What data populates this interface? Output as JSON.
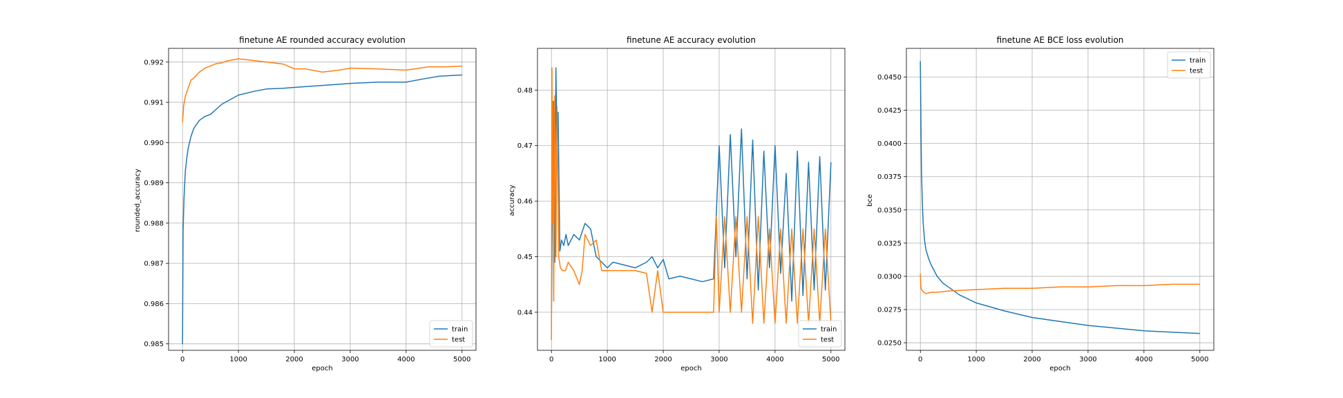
{
  "chart_data": [
    {
      "type": "line",
      "title": "finetune AE rounded accuracy evolution",
      "xlabel": "epoch",
      "ylabel": "rounded_accuracy",
      "xlim": [
        -250,
        5250
      ],
      "ylim": [
        0.98484,
        0.99234
      ],
      "xticks": [
        0,
        1000,
        2000,
        3000,
        4000,
        5000
      ],
      "yticks": [
        0.985,
        0.986,
        0.987,
        0.988,
        0.989,
        0.99,
        0.991,
        0.992
      ],
      "ytick_labels": [
        "0.985",
        "0.986",
        "0.987",
        "0.988",
        "0.989",
        "0.990",
        "0.991",
        "0.992"
      ],
      "grid": true,
      "legend": "lower right",
      "series": [
        {
          "name": "train",
          "color": "#1f77b4",
          "x": [
            0,
            10,
            25,
            50,
            75,
            100,
            150,
            200,
            300,
            400,
            500,
            700,
            1000,
            1300,
            1500,
            1800,
            2000,
            2500,
            3000,
            3500,
            4000,
            4300,
            4600,
            5000
          ],
          "y": [
            0.985,
            0.9878,
            0.9886,
            0.9893,
            0.9896,
            0.98985,
            0.99015,
            0.99035,
            0.99055,
            0.99065,
            0.9907,
            0.99095,
            0.99118,
            0.99128,
            0.99133,
            0.99135,
            0.99137,
            0.99142,
            0.99147,
            0.9915,
            0.9915,
            0.99158,
            0.99165,
            0.99168
          ]
        },
        {
          "name": "test",
          "color": "#ff7f0e",
          "x": [
            0,
            20,
            50,
            100,
            150,
            200,
            300,
            400,
            500,
            600,
            700,
            800,
            1000,
            1200,
            1500,
            1800,
            2000,
            2200,
            2500,
            2800,
            3000,
            3500,
            4000,
            4400,
            4700,
            5000
          ],
          "y": [
            0.9905,
            0.9909,
            0.99115,
            0.99135,
            0.99155,
            0.9916,
            0.99175,
            0.99185,
            0.9919,
            0.99196,
            0.99198,
            0.99203,
            0.99208,
            0.99205,
            0.992,
            0.99195,
            0.99183,
            0.99183,
            0.99175,
            0.9918,
            0.99185,
            0.99183,
            0.9918,
            0.99188,
            0.99188,
            0.9919
          ]
        }
      ]
    },
    {
      "type": "line",
      "title": "finetune AE accuracy evolution",
      "xlabel": "epoch",
      "ylabel": "accuracy",
      "xlim": [
        -250,
        5250
      ],
      "ylim": [
        0.43314,
        0.48751
      ],
      "xticks": [
        0,
        1000,
        2000,
        3000,
        4000,
        5000
      ],
      "yticks": [
        0.44,
        0.45,
        0.46,
        0.47,
        0.48
      ],
      "ytick_labels": [
        "0.44",
        "0.45",
        "0.46",
        "0.47",
        "0.48"
      ],
      "grid": true,
      "legend": "lower right",
      "series": [
        {
          "name": "train",
          "color": "#1f77b4",
          "x": [
            0,
            20,
            40,
            60,
            80,
            100,
            120,
            150,
            180,
            220,
            260,
            300,
            400,
            500,
            600,
            700,
            800,
            900,
            1000,
            1100,
            1300,
            1500,
            1700,
            1800,
            1900,
            2000,
            2100,
            2300,
            2500,
            2700,
            2900,
            3000,
            3100,
            3200,
            3300,
            3400,
            3500,
            3600,
            3700,
            3800,
            3900,
            4000,
            4100,
            4200,
            4300,
            4400,
            4500,
            4600,
            4700,
            4800,
            4900,
            5000
          ],
          "y": [
            0.438,
            0.465,
            0.478,
            0.449,
            0.484,
            0.469,
            0.476,
            0.451,
            0.453,
            0.452,
            0.454,
            0.452,
            0.454,
            0.453,
            0.456,
            0.455,
            0.45,
            0.449,
            0.448,
            0.449,
            0.4485,
            0.448,
            0.449,
            0.45,
            0.448,
            0.4495,
            0.446,
            0.4465,
            0.446,
            0.4455,
            0.446,
            0.47,
            0.448,
            0.472,
            0.45,
            0.473,
            0.446,
            0.471,
            0.444,
            0.469,
            0.448,
            0.47,
            0.447,
            0.465,
            0.442,
            0.469,
            0.443,
            0.467,
            0.444,
            0.468,
            0.444,
            0.467
          ]
        },
        {
          "name": "test",
          "color": "#ff7f0e",
          "x": [
            0,
            10,
            20,
            30,
            40,
            60,
            80,
            100,
            130,
            160,
            200,
            250,
            300,
            400,
            500,
            550,
            600,
            700,
            800,
            900,
            1000,
            1200,
            1500,
            1700,
            1800,
            1900,
            2000,
            2300,
            2600,
            2900,
            2950,
            3000,
            3100,
            3200,
            3300,
            3400,
            3500,
            3600,
            3700,
            3800,
            3900,
            4000,
            4100,
            4200,
            4300,
            4400,
            4500,
            4600,
            4700,
            4800,
            4900,
            5000
          ],
          "y": [
            0.435,
            0.484,
            0.456,
            0.478,
            0.442,
            0.479,
            0.45,
            0.477,
            0.45,
            0.448,
            0.4475,
            0.4475,
            0.449,
            0.4475,
            0.445,
            0.4475,
            0.454,
            0.452,
            0.453,
            0.4475,
            0.4475,
            0.4475,
            0.4475,
            0.447,
            0.44,
            0.4475,
            0.44,
            0.44,
            0.44,
            0.44,
            0.4572,
            0.44,
            0.4572,
            0.44,
            0.4572,
            0.44,
            0.4572,
            0.438,
            0.4572,
            0.438,
            0.455,
            0.438,
            0.455,
            0.438,
            0.455,
            0.438,
            0.455,
            0.438,
            0.455,
            0.438,
            0.455,
            0.438
          ]
        }
      ]
    },
    {
      "type": "line",
      "title": "finetune AE BCE loss evolution",
      "xlabel": "epoch",
      "ylabel": "bce",
      "xlim": [
        -250,
        5250
      ],
      "ylim": [
        0.02443,
        0.04716
      ],
      "xticks": [
        0,
        1000,
        2000,
        3000,
        4000,
        5000
      ],
      "yticks": [
        0.025,
        0.0275,
        0.03,
        0.0325,
        0.035,
        0.0375,
        0.04,
        0.0425,
        0.045
      ],
      "ytick_labels": [
        "0.0250",
        "0.0275",
        "0.0300",
        "0.0325",
        "0.0350",
        "0.0375",
        "0.0400",
        "0.0425",
        "0.0450"
      ],
      "grid": true,
      "legend": "upper right",
      "series": [
        {
          "name": "train",
          "color": "#1f77b4",
          "x": [
            0,
            10,
            20,
            35,
            50,
            75,
            100,
            150,
            200,
            300,
            400,
            500,
            700,
            1000,
            1500,
            2000,
            2500,
            3000,
            3500,
            4000,
            4500,
            5000
          ],
          "y": [
            0.0462,
            0.042,
            0.038,
            0.0355,
            0.034,
            0.0327,
            0.032,
            0.0313,
            0.0308,
            0.03,
            0.0295,
            0.0292,
            0.0286,
            0.028,
            0.0274,
            0.0269,
            0.0266,
            0.0263,
            0.0261,
            0.0259,
            0.0258,
            0.0257
          ]
        },
        {
          "name": "test",
          "color": "#ff7f0e",
          "x": [
            0,
            10,
            20,
            40,
            60,
            100,
            200,
            300,
            500,
            1000,
            1500,
            2000,
            2500,
            3000,
            3500,
            4000,
            4500,
            5000
          ],
          "y": [
            0.0302,
            0.0292,
            0.029,
            0.0289,
            0.0288,
            0.0287,
            0.0288,
            0.0288,
            0.0289,
            0.029,
            0.0291,
            0.0291,
            0.0292,
            0.0292,
            0.0293,
            0.0293,
            0.0294,
            0.0294
          ]
        }
      ]
    }
  ]
}
